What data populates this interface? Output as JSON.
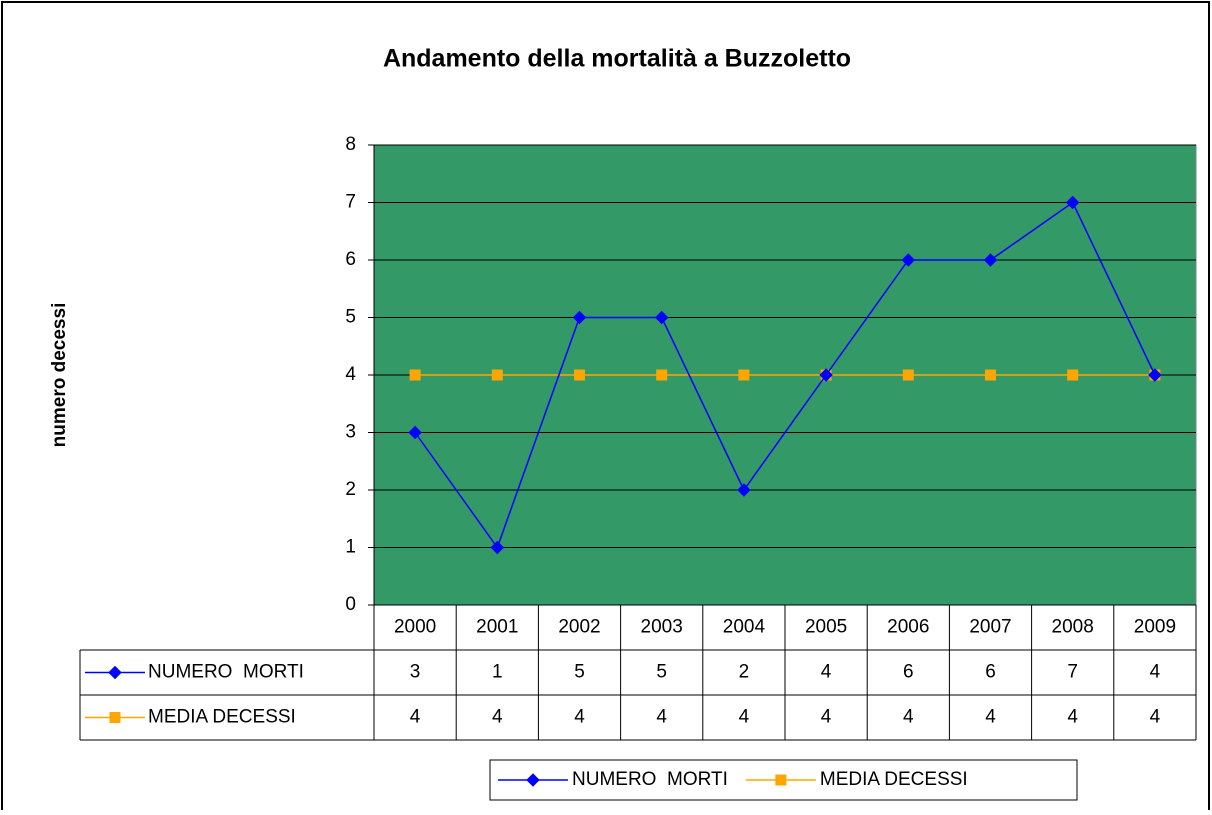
{
  "chart_data": {
    "type": "line",
    "title": "Andamento della mortalità a Buzzoletto",
    "y_label": "numero decessi",
    "categories": [
      "2000",
      "2001",
      "2002",
      "2003",
      "2004",
      "2005",
      "2006",
      "2007",
      "2008",
      "2009"
    ],
    "series": [
      {
        "name": "NUMERO  MORTI",
        "color": "#0000ff",
        "marker": "diamond",
        "values": [
          3,
          1,
          5,
          5,
          2,
          4,
          6,
          6,
          7,
          4
        ]
      },
      {
        "name": "MEDIA DECESSI",
        "color": "#ffa500",
        "marker": "square",
        "values": [
          4,
          4,
          4,
          4,
          4,
          4,
          4,
          4,
          4,
          4
        ]
      }
    ],
    "ylim": [
      0,
      8
    ],
    "yticks": [
      0,
      1,
      2,
      3,
      4,
      5,
      6,
      7,
      8
    ],
    "grid": true,
    "plot_color": "#339966"
  }
}
